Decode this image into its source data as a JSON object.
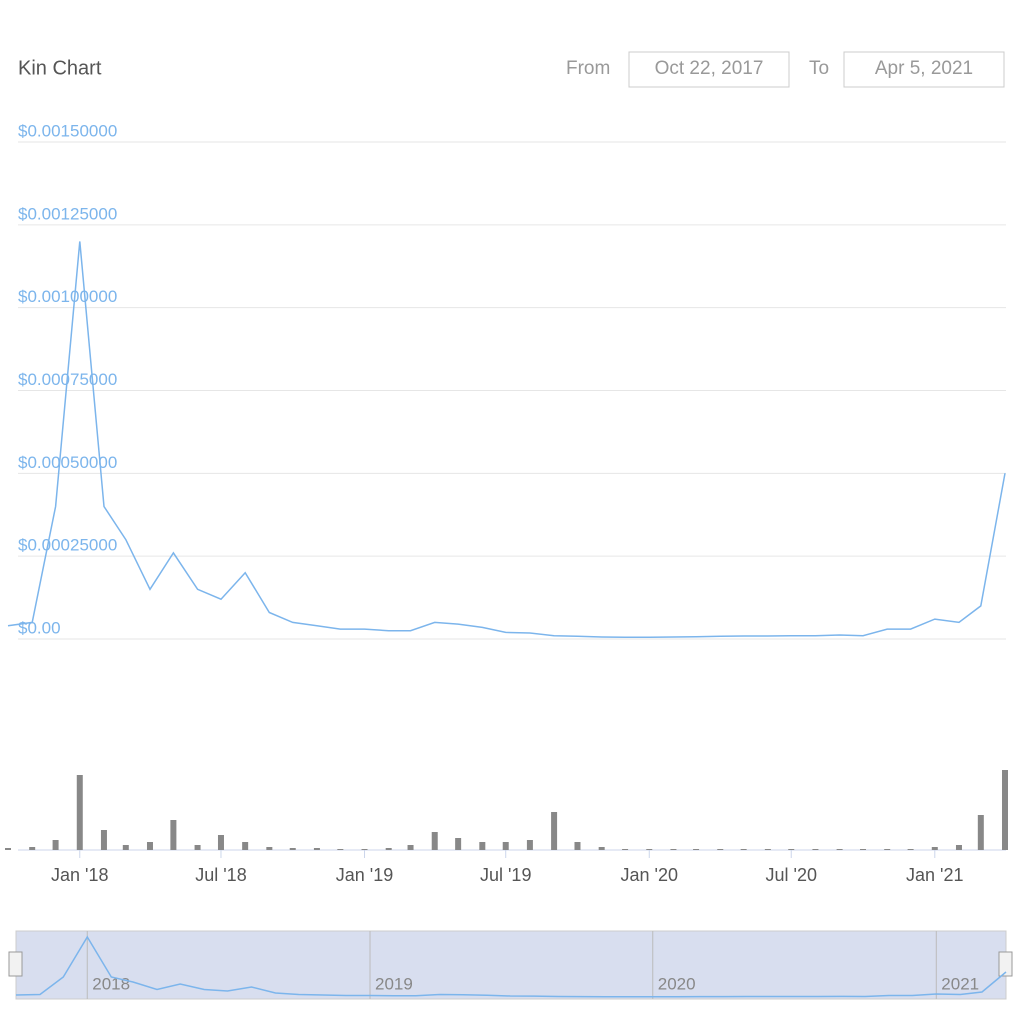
{
  "chart_data": {
    "type": "line",
    "title": "Kin Chart",
    "from_label": "From",
    "from_date": "Oct 22, 2017",
    "to_label": "To",
    "to_date": "Apr 5, 2021",
    "x": [
      "2017-10",
      "2017-11",
      "2017-12",
      "2018-01",
      "2018-02",
      "2018-03",
      "2018-04",
      "2018-05",
      "2018-06",
      "2018-07",
      "2018-08",
      "2018-09",
      "2018-10",
      "2018-11",
      "2018-12",
      "2019-01",
      "2019-02",
      "2019-03",
      "2019-04",
      "2019-05",
      "2019-06",
      "2019-07",
      "2019-08",
      "2019-09",
      "2019-10",
      "2019-11",
      "2019-12",
      "2020-01",
      "2020-02",
      "2020-03",
      "2020-04",
      "2020-05",
      "2020-06",
      "2020-07",
      "2020-08",
      "2020-09",
      "2020-10",
      "2020-11",
      "2020-12",
      "2021-01",
      "2021-02",
      "2021-03",
      "2021-04"
    ],
    "series": [
      {
        "color": "#7cb5ec",
        "values": [
          4e-05,
          5e-05,
          0.0004,
          0.0012,
          0.0004,
          0.0003,
          0.00015,
          0.00026,
          0.00015,
          0.00012,
          0.0002,
          8e-05,
          5e-05,
          4e-05,
          3e-05,
          3e-05,
          2.5e-05,
          2.5e-05,
          5e-05,
          4.5e-05,
          3.5e-05,
          2e-05,
          1.8e-05,
          1e-05,
          8e-06,
          6e-06,
          5e-06,
          5e-06,
          6e-06,
          7e-06,
          8e-06,
          9e-06,
          9e-06,
          1e-05,
          1e-05,
          1.2e-05,
          1e-05,
          3e-05,
          3e-05,
          6e-05,
          5e-05,
          0.0001,
          0.0005
        ]
      }
    ],
    "volume": {
      "color": "#888888",
      "values": [
        2,
        3,
        10,
        75,
        20,
        5,
        8,
        30,
        5,
        15,
        8,
        3,
        2,
        2,
        1,
        1,
        2,
        5,
        18,
        12,
        8,
        8,
        10,
        38,
        8,
        3,
        1,
        1,
        1,
        1,
        1,
        1,
        1,
        1,
        1,
        1,
        1,
        1,
        1,
        3,
        5,
        35,
        80
      ]
    },
    "xlim": [
      "2017-10",
      "2021-04"
    ],
    "xticks": [
      {
        "value": "2018-01",
        "label": "Jan '18"
      },
      {
        "value": "2018-07",
        "label": "Jul '18"
      },
      {
        "value": "2019-01",
        "label": "Jan '19"
      },
      {
        "value": "2019-07",
        "label": "Jul '19"
      },
      {
        "value": "2020-01",
        "label": "Jan '20"
      },
      {
        "value": "2020-07",
        "label": "Jul '20"
      },
      {
        "value": "2021-01",
        "label": "Jan '21"
      }
    ],
    "navigator_ticks": [
      {
        "value": "2018-01",
        "label": "2018"
      },
      {
        "value": "2019-01",
        "label": "2019"
      },
      {
        "value": "2020-01",
        "label": "2020"
      },
      {
        "value": "2021-01",
        "label": "2021"
      }
    ],
    "ylim": [
      0,
      0.0015
    ],
    "yticks": [
      {
        "value": 0,
        "label": "$0.00"
      },
      {
        "value": 0.00025,
        "label": "$0.00025000"
      },
      {
        "value": 0.0005,
        "label": "$0.00050000"
      },
      {
        "value": 0.00075,
        "label": "$0.00075000"
      },
      {
        "value": 0.001,
        "label": "$0.00100000"
      },
      {
        "value": 0.00125,
        "label": "$0.00125000"
      },
      {
        "value": 0.0015,
        "label": "$0.00150000"
      }
    ],
    "grid": true
  }
}
